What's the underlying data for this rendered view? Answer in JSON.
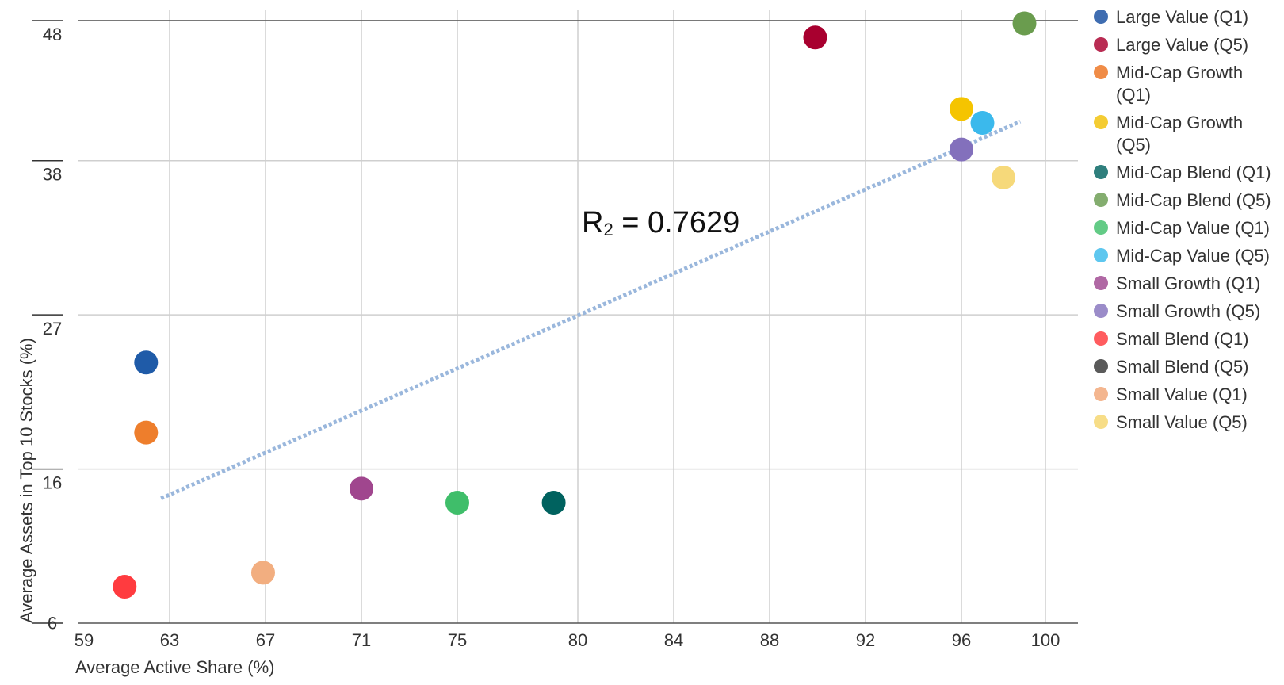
{
  "chart_data": {
    "type": "scatter",
    "title": "",
    "xlabel": "Average Active Share (%)",
    "ylabel": "Average Assets in Top 10 Stocks (%)",
    "xlim": [
      59,
      101
    ],
    "ylim": [
      5,
      48
    ],
    "x_ticks": [
      59,
      63,
      67,
      71,
      75,
      80,
      84,
      88,
      92,
      96,
      100
    ],
    "y_ticks": [
      6,
      16,
      27,
      38,
      48
    ],
    "grid": true,
    "legend_position": "right",
    "annotation": {
      "text_main": "R",
      "text_sub": "2",
      "text_rest": " = 0.7629"
    },
    "trendline": {
      "style": "dotted",
      "color": "#9AB7DC",
      "x": [
        62.6,
        98.8
      ],
      "y": [
        13.9,
        40.8
      ]
    },
    "series": [
      {
        "name": "Large Value (Q1)",
        "color": "#1F5BA8",
        "legend_color": "#3F6DB1",
        "x": 61.9,
        "y": 23.6
      },
      {
        "name": "Large Value (Q5)",
        "color": "#A8002F",
        "legend_color": "#B92C53",
        "x": 89.9,
        "y": 46.8
      },
      {
        "name": "Mid-Cap Growth (Q1)",
        "color": "#EE7E2C",
        "legend_color": "#F08C47",
        "x": 61.9,
        "y": 18.6
      },
      {
        "name": "Mid-Cap Growth (Q5)",
        "color": "#F5C400",
        "legend_color": "#F4CC33",
        "x": 96.0,
        "y": 41.7
      },
      {
        "name": "Mid-Cap Blend (Q1)",
        "color": "#00625F",
        "legend_color": "#2F7F7D",
        "x": 79.0,
        "y": 13.6
      },
      {
        "name": "Mid-Cap Blend (Q5)",
        "color": "#6A9C4E",
        "legend_color": "#84AD6F",
        "x": 99.0,
        "y": 47.8
      },
      {
        "name": "Mid-Cap Value (Q1)",
        "color": "#3FBE6A",
        "legend_color": "#63CB86",
        "x": 75.0,
        "y": 13.6
      },
      {
        "name": "Mid-Cap Value (Q5)",
        "color": "#3BB9EC",
        "legend_color": "#5EC7EF",
        "x": 97.0,
        "y": 40.7
      },
      {
        "name": "Small Growth (Q1)",
        "color": "#A0468E",
        "legend_color": "#B068A4",
        "x": 71.0,
        "y": 14.6
      },
      {
        "name": "Small Growth (Q5)",
        "color": "#8370BC",
        "legend_color": "#9B8CC9",
        "x": 96.0,
        "y": 38.8
      },
      {
        "name": "Small Blend (Q1)",
        "color": "#FF3B3F",
        "legend_color": "#FF5C5F",
        "x": 60.9,
        "y": 7.6
      },
      {
        "name": "Small Blend (Q5)",
        "color": "#4E4E4E",
        "legend_color": "#5A5A5A",
        "x": null,
        "y": null
      },
      {
        "name": "Small Value (Q1)",
        "color": "#F2AE80",
        "legend_color": "#F4B68F",
        "x": 66.9,
        "y": 8.6
      },
      {
        "name": "Small Value (Q5)",
        "color": "#F6D97A",
        "legend_color": "#F7DD87",
        "x": 98.0,
        "y": 36.8
      }
    ]
  }
}
